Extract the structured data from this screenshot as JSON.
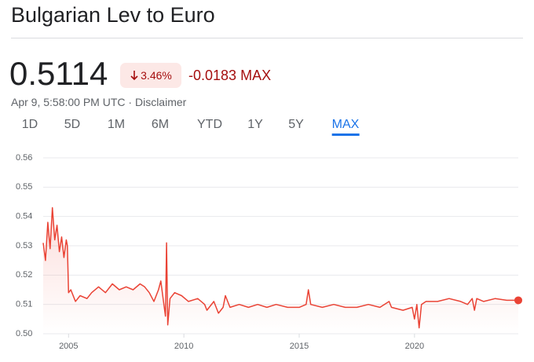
{
  "header": {
    "title": "Bulgarian Lev to Euro",
    "price": "0.5114",
    "change_pct": "3.46%",
    "change": "-0.0183",
    "period": "MAX",
    "timestamp": "Apr 9, 5:58:00 PM UTC",
    "disclaimer": "Disclaimer"
  },
  "tabs": {
    "items": [
      "1D",
      "5D",
      "1M",
      "6M",
      "YTD",
      "1Y",
      "5Y",
      "MAX"
    ],
    "selected": "MAX"
  },
  "chart_data": {
    "type": "line",
    "color": "#ea4335",
    "grid": true,
    "x": [
      2003.9,
      2004.0,
      2004.1,
      2004.2,
      2004.3,
      2004.4,
      2004.5,
      2004.6,
      2004.7,
      2004.8,
      2004.9,
      2004.95,
      2005.0,
      2005.1,
      2005.3,
      2005.5,
      2005.8,
      2006.0,
      2006.3,
      2006.6,
      2006.9,
      2007.2,
      2007.5,
      2007.8,
      2008.1,
      2008.3,
      2008.5,
      2008.7,
      2008.9,
      2009.0,
      2009.1,
      2009.2,
      2009.25,
      2009.3,
      2009.4,
      2009.6,
      2009.9,
      2010.2,
      2010.6,
      2010.9,
      2011.0,
      2011.3,
      2011.5,
      2011.7,
      2011.8,
      2012.0,
      2012.4,
      2012.8,
      2013.2,
      2013.6,
      2014.0,
      2014.5,
      2015.0,
      2015.3,
      2015.4,
      2015.5,
      2016.0,
      2016.5,
      2017.0,
      2017.5,
      2018.0,
      2018.5,
      2018.9,
      2019.0,
      2019.5,
      2019.9,
      2020.0,
      2020.1,
      2020.2,
      2020.3,
      2020.5,
      2021.0,
      2021.5,
      2022.0,
      2022.3,
      2022.5,
      2022.6,
      2022.7,
      2023.0,
      2023.5,
      2024.0,
      2024.5
    ],
    "values": [
      0.531,
      0.525,
      0.538,
      0.529,
      0.543,
      0.532,
      0.537,
      0.528,
      0.533,
      0.526,
      0.532,
      0.53,
      0.514,
      0.515,
      0.511,
      0.513,
      0.512,
      0.514,
      0.516,
      0.514,
      0.517,
      0.515,
      0.516,
      0.515,
      0.517,
      0.516,
      0.514,
      0.511,
      0.515,
      0.518,
      0.512,
      0.506,
      0.531,
      0.503,
      0.512,
      0.514,
      0.513,
      0.511,
      0.512,
      0.51,
      0.508,
      0.511,
      0.507,
      0.509,
      0.513,
      0.509,
      0.51,
      0.509,
      0.51,
      0.509,
      0.51,
      0.509,
      0.509,
      0.51,
      0.515,
      0.51,
      0.509,
      0.51,
      0.509,
      0.509,
      0.51,
      0.509,
      0.511,
      0.509,
      0.508,
      0.509,
      0.505,
      0.51,
      0.502,
      0.51,
      0.511,
      0.511,
      0.512,
      0.511,
      0.51,
      0.512,
      0.508,
      0.512,
      0.511,
      0.512,
      0.5114,
      0.5114
    ],
    "xlim": [
      2003.9,
      2024.5
    ],
    "xticks": [
      2005,
      2010,
      2015,
      2020
    ],
    "ylim": [
      0.5,
      0.56
    ],
    "yticks": [
      {
        "value": 0.5,
        "label": "0.50"
      },
      0.51,
      0.52,
      0.53,
      0.54,
      0.55,
      0.56
    ]
  }
}
